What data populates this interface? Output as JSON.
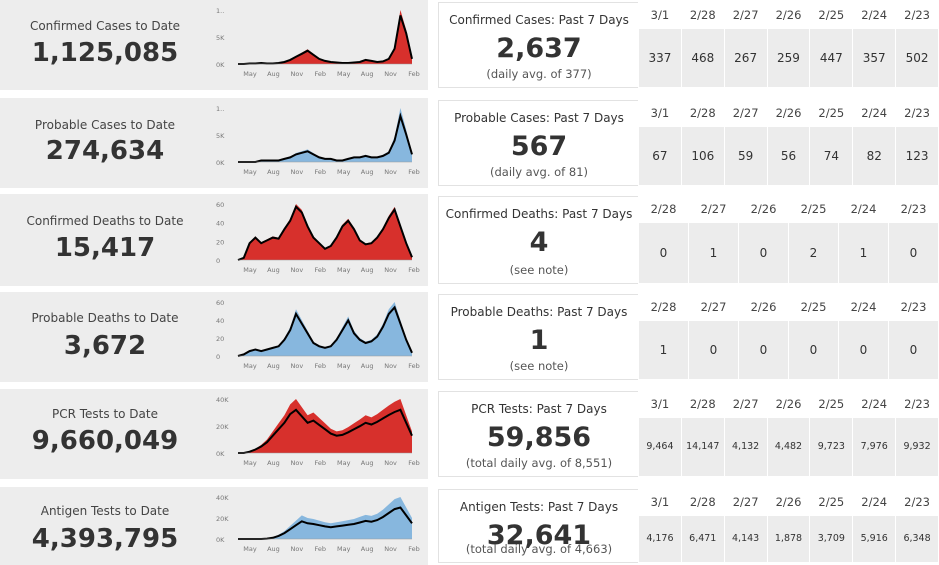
{
  "colors": {
    "confirmed": "#d7302c",
    "probable": "#87b7de",
    "line": "#000000",
    "panel": "#ededed"
  },
  "sections": [
    {
      "key": "confirmed_cases",
      "series": "confirmed",
      "title": "Confirmed Cases to Date",
      "total": "1,125,085",
      "spark_y_ticks": [
        "1..",
        "5K",
        "0K"
      ],
      "spark_x_ticks": [
        "May",
        "Aug",
        "Nov",
        "Feb",
        "May",
        "Aug",
        "Nov",
        "Feb"
      ],
      "week_title": "Confirmed Cases: Past 7 Days",
      "week_total": "2,637",
      "week_note": "(daily avg. of 377)",
      "dates": [
        "3/1",
        "2/28",
        "2/27",
        "2/26",
        "2/25",
        "2/24",
        "2/23"
      ],
      "values": [
        "337",
        "468",
        "267",
        "259",
        "447",
        "357",
        "502"
      ]
    },
    {
      "key": "probable_cases",
      "series": "probable",
      "title": "Probable Cases to Date",
      "total": "274,634",
      "spark_y_ticks": [
        "1..",
        "5K",
        "0K"
      ],
      "spark_x_ticks": [
        "May",
        "Aug",
        "Nov",
        "Feb",
        "May",
        "Aug",
        "Nov",
        "Feb"
      ],
      "week_title": "Probable Cases: Past 7 Days",
      "week_total": "567",
      "week_note": "(daily avg. of 81)",
      "dates": [
        "3/1",
        "2/28",
        "2/27",
        "2/26",
        "2/25",
        "2/24",
        "2/23"
      ],
      "values": [
        "67",
        "106",
        "59",
        "56",
        "74",
        "82",
        "123"
      ]
    },
    {
      "key": "confirmed_deaths",
      "series": "confirmed",
      "title": "Confirmed Deaths to Date",
      "total": "15,417",
      "spark_y_ticks": [
        "60",
        "40",
        "20",
        "0"
      ],
      "spark_x_ticks": [
        "May",
        "Aug",
        "Nov",
        "Feb",
        "May",
        "Aug",
        "Nov",
        "Feb"
      ],
      "week_title": "Confirmed Deaths: Past 7 Days",
      "week_total": "4",
      "week_note": "(see note)",
      "dates": [
        "2/28",
        "2/27",
        "2/26",
        "2/25",
        "2/24",
        "2/23"
      ],
      "values": [
        "0",
        "1",
        "0",
        "2",
        "1",
        "0"
      ]
    },
    {
      "key": "probable_deaths",
      "series": "probable",
      "title": "Probable Deaths to Date",
      "total": "3,672",
      "spark_y_ticks": [
        "60",
        "40",
        "20",
        "0"
      ],
      "spark_x_ticks": [
        "May",
        "Aug",
        "Nov",
        "Feb",
        "May",
        "Aug",
        "Nov",
        "Feb"
      ],
      "week_title": "Probable Deaths: Past 7 Days",
      "week_total": "1",
      "week_note": "(see note)",
      "dates": [
        "2/28",
        "2/27",
        "2/26",
        "2/25",
        "2/24",
        "2/23"
      ],
      "values": [
        "1",
        "0",
        "0",
        "0",
        "0",
        "0"
      ]
    },
    {
      "key": "pcr_tests",
      "series": "confirmed",
      "title": "PCR Tests to Date",
      "total": "9,660,049",
      "spark_y_ticks": [
        "40K",
        "20K",
        "0K"
      ],
      "spark_x_ticks": [
        "May",
        "Aug",
        "Nov",
        "Feb",
        "May",
        "Aug",
        "Nov",
        "Feb"
      ],
      "week_title": "PCR Tests: Past 7 Days",
      "week_total": "59,856",
      "week_note": "(total daily avg. of 8,551)",
      "dates": [
        "3/1",
        "2/28",
        "2/27",
        "2/26",
        "2/25",
        "2/24",
        "2/23"
      ],
      "values": [
        "9,464",
        "14,147",
        "4,132",
        "4,482",
        "9,723",
        "7,976",
        "9,932"
      ]
    },
    {
      "key": "antigen_tests",
      "series": "probable",
      "title": "Antigen Tests to Date",
      "total": "4,393,795",
      "spark_y_ticks": [
        "40K",
        "20K",
        "0K"
      ],
      "spark_x_ticks": [
        "May",
        "Aug",
        "Nov",
        "Feb",
        "May",
        "Aug",
        "Nov",
        "Feb"
      ],
      "week_title": "Antigen Tests: Past 7 Days",
      "week_total": "32,641",
      "week_note": "(total daily avg. of 4,663)",
      "dates": [
        "3/1",
        "2/28",
        "2/27",
        "2/26",
        "2/25",
        "2/24",
        "2/23"
      ],
      "values": [
        "4,176",
        "6,471",
        "4,143",
        "1,878",
        "3,709",
        "5,916",
        "6,348"
      ]
    }
  ]
}
